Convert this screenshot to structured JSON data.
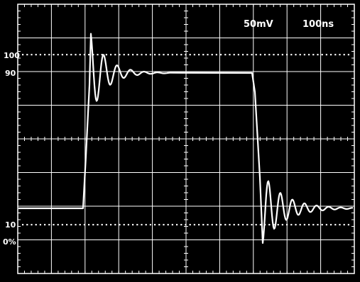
{
  "scope": {
    "volts_per_div": "50mV",
    "time_per_div": "100ns",
    "levels": {
      "l100": "100",
      "l90": "90",
      "l10": "10",
      "l0": "0%"
    }
  },
  "colors": {
    "background": "#000000",
    "grid": "#ffffff",
    "trace": "#ffffff"
  }
}
